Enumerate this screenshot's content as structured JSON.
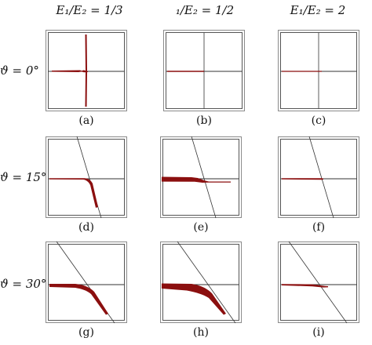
{
  "figure": {
    "columns": [
      {
        "label": "E1/E2 = 1/3",
        "display": "E₁/E₂ = 1/3"
      },
      {
        "label": "1/E2 = 1/2",
        "display": "₁/E₂ = 1/2"
      },
      {
        "label": "E1/E2 = 2",
        "display": "E₁/E₂ = 2"
      }
    ],
    "rows": [
      {
        "label": "ϑ = 0°",
        "display": "ϑ = 0°"
      },
      {
        "label": "ϑ = 15°",
        "display": "ϑ = 15°"
      },
      {
        "label": "ϑ = 30°",
        "display": "ϑ = 30°"
      }
    ],
    "panels": [
      {
        "caption": "(a)"
      },
      {
        "caption": "(b)"
      },
      {
        "caption": "(c)"
      },
      {
        "caption": "(d)"
      },
      {
        "caption": "(e)"
      },
      {
        "caption": "(f)"
      },
      {
        "caption": "(g)"
      },
      {
        "caption": "(h)"
      },
      {
        "caption": "(i)"
      }
    ],
    "colors": {
      "crack": "#8b0f0f",
      "frame_outer": "#8a8a8a",
      "frame_inner": "#555555",
      "interface": "#333333"
    }
  }
}
